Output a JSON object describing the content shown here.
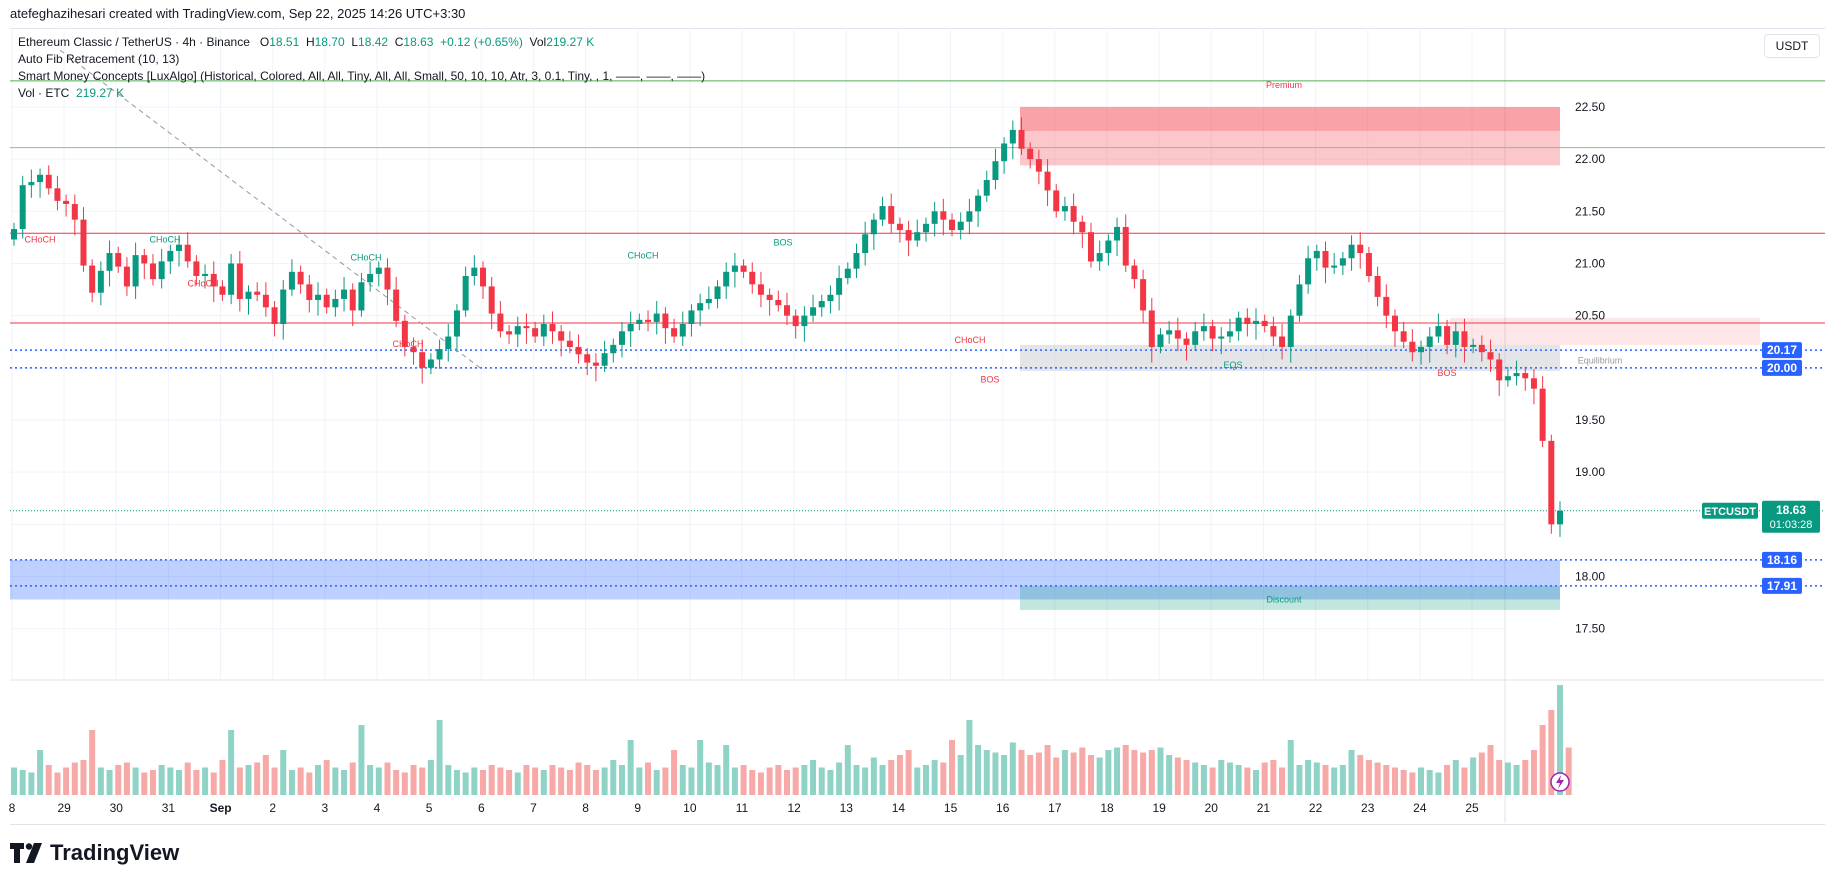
{
  "header": {
    "creator": "atefeghazihesari created with TradingView.com, Sep 22, 2025 14:26 UTC+3:30"
  },
  "legend": {
    "symbol": "Ethereum Classic / TetherUS · 4h · Binance",
    "open_label": "O",
    "open": "18.51",
    "high_label": "H",
    "high": "18.70",
    "low_label": "L",
    "low": "18.42",
    "close_label": "C",
    "close": "18.63",
    "change": "+0.12 (+0.65%)",
    "vol_label": "Vol",
    "vol": "219.27 K",
    "indicator_fib": "Auto Fib Retracement (10, 13)",
    "indicator_smc": "Smart Money Concepts [LuxAlgo] (Historical, Colored, All, All, Tiny, All, All, Small, 50, 10, 10, Atr, 3, 0.1, Tiny, , 1, ——, ——, ——)",
    "vol_indicator": "Vol · ETC",
    "vol_indicator_value": "219.27 K"
  },
  "toolbar": {
    "currency": "USDT"
  },
  "brand": {
    "name": "TradingView"
  },
  "colors": {
    "up": "#089981",
    "down": "#f23645",
    "up_vol": "#8fd3c7",
    "down_vol": "#f7a9a7",
    "blue_zone": "#2962ff"
  },
  "chart_data": {
    "type": "candlestick",
    "symbol_tag": "ETCUSDT",
    "last_price": "18.63",
    "countdown": "01:03:28",
    "price_axis_labels": [
      "22.50",
      "22.00",
      "21.50",
      "21.00",
      "20.50",
      "19.50",
      "19.00",
      "18.00",
      "17.50"
    ],
    "price_tags": [
      "20.17",
      "20.00",
      "18.16",
      "17.91"
    ],
    "time_axis_labels": [
      "8",
      "29",
      "30",
      "31",
      "Sep",
      "2",
      "3",
      "4",
      "5",
      "6",
      "7",
      "8",
      "9",
      "10",
      "11",
      "12",
      "13",
      "14",
      "15",
      "16",
      "17",
      "18",
      "19",
      "20",
      "21",
      "22",
      "23",
      "24",
      "25"
    ],
    "annotations": {
      "premium": "Premium",
      "equilibrium": "Equilibrium",
      "discount": "Discount",
      "bos": "BOS",
      "choch": "CHoCH",
      "eqs": "EQS"
    },
    "ylim": [
      17.2,
      22.95
    ],
    "closes": [
      21.33,
      21.75,
      21.78,
      21.85,
      21.72,
      21.6,
      21.57,
      21.42,
      20.98,
      20.72,
      20.93,
      21.1,
      20.97,
      20.78,
      21.08,
      21.0,
      20.85,
      21.02,
      21.12,
      21.18,
      21.02,
      20.88,
      20.9,
      20.78,
      20.7,
      21.0,
      20.66,
      20.73,
      20.7,
      20.58,
      20.42,
      20.75,
      20.92,
      20.8,
      20.65,
      20.7,
      20.58,
      20.66,
      20.75,
      20.55,
      20.82,
      20.9,
      20.96,
      20.75,
      20.45,
      20.2,
      20.15,
      20.0,
      20.08,
      20.18,
      20.3,
      20.55,
      20.88,
      20.96,
      20.78,
      20.52,
      20.35,
      20.32,
      20.4,
      20.38,
      20.3,
      20.42,
      20.35,
      20.26,
      20.2,
      20.13,
      20.05,
      20.02,
      20.14,
      20.22,
      20.35,
      20.42,
      20.46,
      20.44,
      20.52,
      20.38,
      20.3,
      20.42,
      20.55,
      20.62,
      20.66,
      20.78,
      20.92,
      20.98,
      20.92,
      20.8,
      20.7,
      20.65,
      20.6,
      20.5,
      20.4,
      20.5,
      20.58,
      20.64,
      20.7,
      20.86,
      20.95,
      21.1,
      21.28,
      21.42,
      21.55,
      21.38,
      21.32,
      21.22,
      21.3,
      21.38,
      21.5,
      21.42,
      21.32,
      21.4,
      21.5,
      21.65,
      21.8,
      21.98,
      22.15,
      22.28,
      22.1,
      22.0,
      21.88,
      21.7,
      21.5,
      21.55,
      21.4,
      21.3,
      21.02,
      21.1,
      21.22,
      21.35,
      20.98,
      20.85,
      20.55,
      20.2,
      20.32,
      20.36,
      20.28,
      20.22,
      20.35,
      20.4,
      20.28,
      20.3,
      20.35,
      20.48,
      20.42,
      20.45,
      20.4,
      20.3,
      20.2,
      20.5,
      20.8,
      21.05,
      21.12,
      20.96,
      20.98,
      21.05,
      21.18,
      21.1,
      20.88,
      20.68,
      20.5,
      20.35,
      20.25,
      20.15,
      20.2,
      20.3,
      20.4,
      20.22,
      20.35,
      20.2,
      20.22,
      20.15,
      20.08,
      19.88,
      19.92,
      19.95,
      19.9,
      19.8,
      19.3,
      18.5,
      18.63
    ],
    "volumes": [
      0.55,
      0.5,
      0.45,
      0.9,
      0.6,
      0.45,
      0.55,
      0.65,
      0.7,
      1.3,
      0.55,
      0.5,
      0.6,
      0.65,
      0.55,
      0.45,
      0.5,
      0.6,
      0.55,
      0.5,
      0.65,
      0.5,
      0.55,
      0.45,
      0.7,
      1.3,
      0.55,
      0.6,
      0.65,
      0.8,
      0.55,
      0.9,
      0.5,
      0.55,
      0.45,
      0.6,
      0.7,
      0.55,
      0.5,
      0.65,
      1.4,
      0.6,
      0.55,
      0.65,
      0.5,
      0.45,
      0.6,
      0.55,
      0.7,
      1.5,
      0.6,
      0.5,
      0.45,
      0.55,
      0.5,
      0.6,
      0.55,
      0.5,
      0.45,
      0.6,
      0.55,
      0.5,
      0.6,
      0.55,
      0.5,
      0.65,
      0.6,
      0.5,
      0.55,
      0.7,
      0.6,
      1.1,
      0.55,
      0.65,
      0.5,
      0.55,
      0.9,
      0.6,
      0.55,
      1.1,
      0.65,
      0.6,
      1.0,
      0.55,
      0.6,
      0.5,
      0.45,
      0.55,
      0.6,
      0.5,
      0.55,
      0.6,
      0.7,
      0.55,
      0.5,
      0.65,
      1.0,
      0.6,
      0.55,
      0.75,
      0.6,
      0.7,
      0.8,
      0.9,
      0.55,
      0.6,
      0.7,
      0.65,
      1.1,
      0.8,
      1.5,
      1.0,
      0.9,
      0.85,
      0.8,
      1.05,
      0.9,
      0.8,
      0.85,
      1.0,
      0.75,
      0.9,
      0.85,
      0.95,
      0.8,
      0.75,
      0.9,
      0.95,
      1.0,
      0.9,
      0.85,
      0.9,
      0.95,
      0.8,
      0.75,
      0.7,
      0.65,
      0.6,
      0.55,
      0.7,
      0.65,
      0.6,
      0.55,
      0.5,
      0.65,
      0.7,
      0.55,
      1.1,
      0.6,
      0.7,
      0.65,
      0.6,
      0.55,
      0.6,
      0.9,
      0.8,
      0.7,
      0.65,
      0.6,
      0.55,
      0.5,
      0.45,
      0.55,
      0.5,
      0.45,
      0.6,
      0.7,
      0.55,
      0.75,
      0.85,
      1.0,
      0.7,
      0.65,
      0.6,
      0.7,
      0.9,
      1.4,
      1.7,
      2.2,
      0.95
    ]
  }
}
